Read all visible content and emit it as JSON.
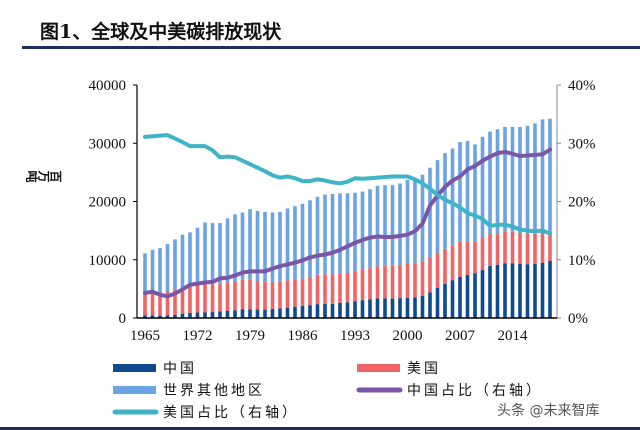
{
  "title": "图1、全球及中美碳排放现状",
  "watermark": "头条 @未来智库",
  "chart_data": {
    "type": "bar",
    "stacked": true,
    "title": "图1、全球及中美碳排放现状",
    "ylabel": "百万吨",
    "ylim": [
      0,
      40000
    ],
    "y2lim": [
      0,
      40
    ],
    "yticks": [
      "0",
      "10000",
      "20000",
      "30000",
      "40000"
    ],
    "y2ticks": [
      "0%",
      "10%",
      "20%",
      "30%",
      "40%"
    ],
    "xtick_labels": [
      "1965",
      "1972",
      "1979",
      "1986",
      "1993",
      "2000",
      "2007",
      "2014"
    ],
    "grid": false,
    "legend_position": "bottom",
    "categories": [
      1965,
      1966,
      1967,
      1968,
      1969,
      1970,
      1971,
      1972,
      1973,
      1974,
      1975,
      1976,
      1977,
      1978,
      1979,
      1980,
      1981,
      1982,
      1983,
      1984,
      1985,
      1986,
      1987,
      1988,
      1989,
      1990,
      1991,
      1992,
      1993,
      1994,
      1995,
      1996,
      1997,
      1998,
      1999,
      2000,
      2001,
      2002,
      2003,
      2004,
      2005,
      2006,
      2007,
      2008,
      2009,
      2010,
      2011,
      2012,
      2013,
      2014,
      2015,
      2016,
      2017,
      2018,
      2019
    ],
    "series": [
      {
        "name": "中国",
        "type": "bar",
        "color": "#0f4a8f",
        "values": [
          430,
          480,
          400,
          430,
          530,
          750,
          880,
          950,
          1000,
          1020,
          1150,
          1210,
          1330,
          1460,
          1480,
          1450,
          1440,
          1540,
          1640,
          1780,
          1940,
          2060,
          2210,
          2380,
          2420,
          2430,
          2580,
          2700,
          2880,
          3060,
          3200,
          3360,
          3380,
          3330,
          3420,
          3480,
          3560,
          3820,
          4420,
          5180,
          5880,
          6500,
          7070,
          7380,
          7700,
          8230,
          8940,
          9150,
          9360,
          9360,
          9280,
          9230,
          9300,
          9490,
          9830
        ]
      },
      {
        "name": "美国",
        "type": "bar",
        "color": "#f06464",
        "values": [
          3700,
          3900,
          4000,
          4200,
          4400,
          4500,
          4600,
          4800,
          5000,
          4800,
          4650,
          4900,
          5000,
          5100,
          5100,
          4900,
          4750,
          4550,
          4550,
          4700,
          4700,
          4700,
          4850,
          5050,
          5100,
          5050,
          5000,
          5100,
          5200,
          5300,
          5350,
          5500,
          5600,
          5650,
          5700,
          5900,
          5800,
          5850,
          5900,
          6000,
          6000,
          5900,
          6000,
          5800,
          5400,
          5600,
          5450,
          5250,
          5400,
          5450,
          5300,
          5200,
          5150,
          5300,
          5150
        ]
      },
      {
        "name": "世界其他地区",
        "type": "bar",
        "color": "#6ba3e3",
        "values": [
          6970,
          7320,
          7600,
          8070,
          8570,
          9050,
          9220,
          9750,
          10400,
          10480,
          10500,
          10990,
          11470,
          11540,
          12120,
          12050,
          12010,
          12010,
          12010,
          12320,
          12560,
          12840,
          13140,
          13370,
          13680,
          13820,
          13820,
          13600,
          13420,
          13340,
          13550,
          13840,
          13820,
          13820,
          13980,
          14320,
          14540,
          14930,
          15480,
          15920,
          16420,
          16700,
          17130,
          17220,
          16700,
          17270,
          17610,
          18000,
          18040,
          17990,
          18220,
          18570,
          18950,
          19310,
          19220
        ]
      },
      {
        "name": "中国占比（右轴）",
        "type": "line",
        "axis": "right",
        "color": "#7b56a6",
        "values": [
          4.3,
          4.5,
          4.0,
          3.7,
          4.2,
          4.9,
          5.7,
          5.9,
          6.1,
          6.2,
          6.8,
          6.9,
          7.3,
          7.8,
          8.0,
          8.0,
          8.0,
          8.5,
          8.9,
          9.2,
          9.5,
          9.9,
          10.4,
          10.7,
          10.9,
          11.2,
          11.7,
          12.3,
          12.9,
          13.4,
          13.8,
          14.0,
          13.9,
          13.9,
          14.1,
          14.3,
          14.9,
          16.2,
          19.3,
          21.0,
          22.5,
          23.6,
          24.3,
          25.5,
          26.1,
          27.0,
          27.7,
          28.3,
          28.5,
          28.2,
          27.8,
          27.9,
          28.0,
          28.1,
          28.9
        ]
      },
      {
        "name": "美国占比（右轴）",
        "type": "line",
        "axis": "right",
        "color": "#3fb3c8",
        "values": [
          31.1,
          31.2,
          31.3,
          31.4,
          30.8,
          30.2,
          29.5,
          29.5,
          29.5,
          28.8,
          27.6,
          27.7,
          27.6,
          27.0,
          26.4,
          25.8,
          25.2,
          24.5,
          24.1,
          24.3,
          24.0,
          23.5,
          23.5,
          23.8,
          23.6,
          23.3,
          23.1,
          23.4,
          24.0,
          23.9,
          24.0,
          24.1,
          24.2,
          24.3,
          24.3,
          24.3,
          23.8,
          23.1,
          22.2,
          21.1,
          20.3,
          19.7,
          19.0,
          18.0,
          17.6,
          17.0,
          15.8,
          16.0,
          16.0,
          15.7,
          15.2,
          15.0,
          14.9,
          15.0,
          14.5
        ]
      }
    ]
  }
}
